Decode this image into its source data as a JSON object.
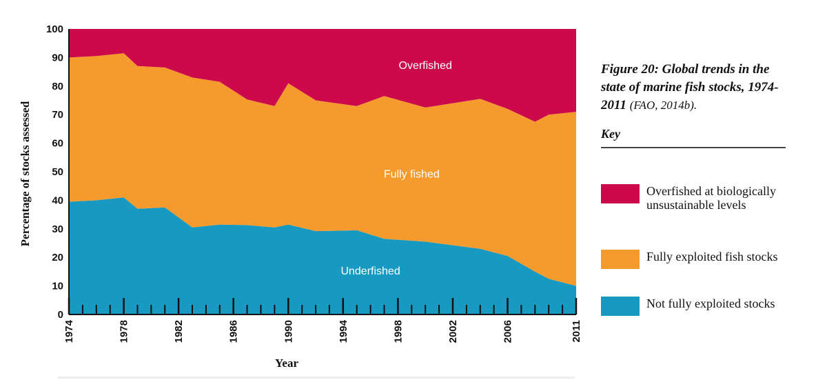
{
  "chart_data": {
    "type": "area",
    "stacked": true,
    "x_range": [
      1974,
      2011
    ],
    "ylim": [
      0,
      100
    ],
    "xlabel": "Year",
    "ylabel": "Percentage of stocks assessed",
    "y_ticks": [
      0,
      10,
      20,
      30,
      40,
      50,
      60,
      70,
      80,
      90,
      100
    ],
    "x_tick_labels": [
      1974,
      1978,
      1982,
      1986,
      1990,
      1994,
      1998,
      2002,
      2006,
      2011
    ],
    "grid": false,
    "series": [
      {
        "name": "Underfished",
        "color": "#1799c2",
        "x": [
          1974,
          1976,
          1978,
          1979,
          1981,
          1983,
          1985,
          1987,
          1989,
          1990,
          1992,
          1995,
          1997,
          2000,
          2004,
          2006,
          2008,
          2009,
          2011
        ],
        "values": [
          39.5,
          40.0,
          41.0,
          37.0,
          37.5,
          30.5,
          31.5,
          31.3,
          30.5,
          31.5,
          29.2,
          29.5,
          26.5,
          25.5,
          23.0,
          20.5,
          15.0,
          12.5,
          10.0
        ]
      },
      {
        "name": "Fully fished",
        "color": "#f59a2c",
        "x": [
          1974,
          1976,
          1978,
          1979,
          1981,
          1983,
          1985,
          1987,
          1989,
          1990,
          1992,
          1995,
          1997,
          2000,
          2004,
          2006,
          2008,
          2009,
          2011
        ],
        "values": [
          50.5,
          50.5,
          50.5,
          50.0,
          49.0,
          52.5,
          50.0,
          44.0,
          42.5,
          49.5,
          45.8,
          43.5,
          50.0,
          47.0,
          52.5,
          51.5,
          52.5,
          57.5,
          61.0
        ]
      },
      {
        "name": "Overfished",
        "color": "#cc0a4b",
        "x": [
          1974,
          1976,
          1978,
          1979,
          1981,
          1983,
          1985,
          1987,
          1989,
          1990,
          1992,
          1995,
          1997,
          2000,
          2004,
          2006,
          2008,
          2009,
          2011
        ],
        "values": [
          10.0,
          9.5,
          8.5,
          13.0,
          13.5,
          17.0,
          18.5,
          24.7,
          27.0,
          19.0,
          25.0,
          27.0,
          23.5,
          27.5,
          24.5,
          28.0,
          32.5,
          30.0,
          29.0
        ]
      }
    ]
  },
  "caption": {
    "title": "Figure 20: Global trends in the state of marine fish stocks, 1974-2011",
    "source": "(FAO, 2014b)."
  },
  "key": {
    "heading": "Key",
    "items": [
      {
        "label": "Overfished at biologically unsustainable levels",
        "color": "#cc0a4b"
      },
      {
        "label": "Fully exploited fish stocks",
        "color": "#f59a2c"
      },
      {
        "label": "Not fully exploited stocks",
        "color": "#1799c2"
      }
    ]
  }
}
